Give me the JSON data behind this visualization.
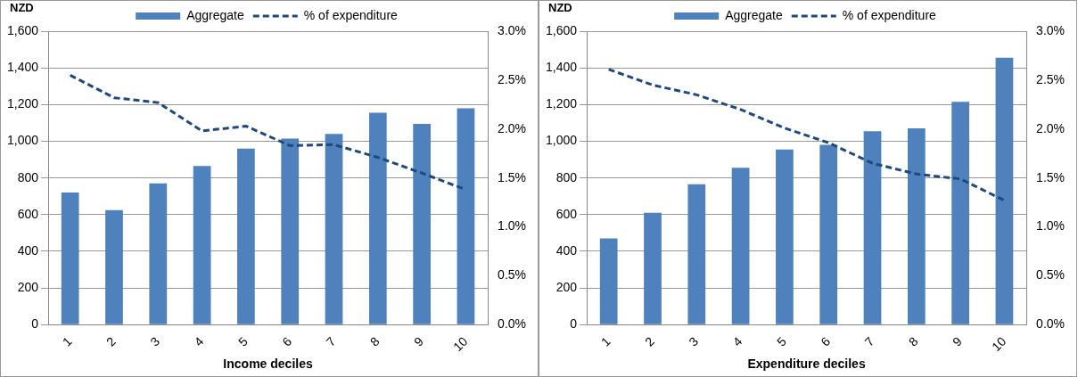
{
  "chart_data": [
    {
      "type": "bar",
      "xlabel": "Income deciles",
      "ylabel": "NZD",
      "categories": [
        "1",
        "2",
        "3",
        "4",
        "5",
        "6",
        "7",
        "8",
        "9",
        "10"
      ],
      "series": [
        {
          "name": "Aggregate",
          "color": "#4f81bd",
          "values": [
            720,
            625,
            770,
            865,
            960,
            1015,
            1040,
            1155,
            1095,
            1180
          ]
        },
        {
          "name": "% of expenditure",
          "type": "line",
          "axis": "y2",
          "color": "#1f497d",
          "line_style": "dashed",
          "values": [
            2.55,
            2.32,
            2.27,
            1.98,
            2.03,
            1.83,
            1.84,
            1.71,
            1.55,
            1.38
          ]
        }
      ],
      "ylim": [
        0,
        1600
      ],
      "yticks": [
        0,
        {
          "value": 200,
          "label": "200"
        },
        {
          "value": 400,
          "label": "400"
        },
        {
          "value": 600,
          "label": "600"
        },
        {
          "value": 800,
          "label": "800"
        },
        {
          "value": 1000,
          "label": "1,000"
        },
        {
          "value": 1200,
          "label": "1,200"
        },
        {
          "value": 1400,
          "label": "1,400"
        },
        {
          "value": 1600,
          "label": "1,600"
        }
      ],
      "y2lim": [
        0,
        3
      ],
      "y2ticks": [
        {
          "value": 0,
          "label": "0.0%"
        },
        {
          "value": 0.5,
          "label": "0.5%"
        },
        {
          "value": 1,
          "label": "1.0%"
        },
        {
          "value": 1.5,
          "label": "1.5%"
        },
        {
          "value": 2,
          "label": "2.0%"
        },
        {
          "value": 2.5,
          "label": "2.5%"
        },
        {
          "value": 3,
          "label": "3.0%"
        }
      ],
      "grid": "y",
      "legend": "top",
      "marker": "none"
    },
    {
      "type": "bar",
      "xlabel": "Expenditure deciles",
      "ylabel": "NZD",
      "categories": [
        "1",
        "2",
        "3",
        "4",
        "5",
        "6",
        "7",
        "8",
        "9",
        "10"
      ],
      "series": [
        {
          "name": "Aggregate",
          "color": "#4f81bd",
          "values": [
            470,
            610,
            765,
            855,
            955,
            980,
            1055,
            1070,
            1215,
            1455
          ]
        },
        {
          "name": "% of expenditure",
          "type": "line",
          "axis": "y2",
          "color": "#1f497d",
          "line_style": "dashed",
          "values": [
            2.61,
            2.45,
            2.35,
            2.2,
            2.01,
            1.86,
            1.65,
            1.54,
            1.49,
            1.27
          ]
        }
      ],
      "ylim": [
        0,
        1600
      ],
      "yticks": [
        0,
        {
          "value": 200,
          "label": "200"
        },
        {
          "value": 400,
          "label": "400"
        },
        {
          "value": 600,
          "label": "600"
        },
        {
          "value": 800,
          "label": "800"
        },
        {
          "value": 1000,
          "label": "1,000"
        },
        {
          "value": 1200,
          "label": "1,200"
        },
        {
          "value": 1400,
          "label": "1,400"
        },
        {
          "value": 1600,
          "label": "1,600"
        }
      ],
      "y2lim": [
        0,
        3
      ],
      "y2ticks": [
        {
          "value": 0,
          "label": "0.0%"
        },
        {
          "value": 0.5,
          "label": "0.5%"
        },
        {
          "value": 1,
          "label": "1.0%"
        },
        {
          "value": 1.5,
          "label": "1.5%"
        },
        {
          "value": 2,
          "label": "2.0%"
        },
        {
          "value": 2.5,
          "label": "2.5%"
        },
        {
          "value": 3,
          "label": "3.0%"
        }
      ],
      "grid": "y",
      "legend": "top",
      "marker": "none"
    }
  ]
}
